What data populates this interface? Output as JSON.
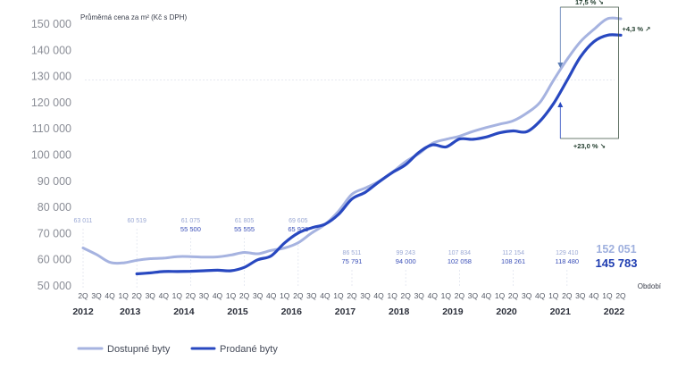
{
  "chart_data": {
    "type": "line",
    "ylabel": "Průměrná cena za m² (Kč s DPH)",
    "xlabel": "Období",
    "ylim": [
      50000,
      155000
    ],
    "grid": false,
    "legend_placement": "bottom-left",
    "y_ticks": [
      "50 000",
      "60 000",
      "70 000",
      "80 000",
      "90 000",
      "100 000",
      "110 000",
      "120 000",
      "130 000",
      "140 000",
      "150 000"
    ],
    "quarters": [
      "2Q",
      "3Q",
      "4Q",
      "1Q",
      "2Q",
      "3Q",
      "4Q",
      "1Q",
      "2Q",
      "3Q",
      "4Q",
      "1Q",
      "2Q",
      "3Q",
      "4Q",
      "1Q",
      "2Q",
      "3Q",
      "4Q",
      "1Q",
      "2Q",
      "3Q",
      "4Q",
      "1Q",
      "2Q",
      "3Q",
      "4Q",
      "1Q",
      "2Q",
      "3Q",
      "4Q",
      "1Q",
      "2Q",
      "3Q",
      "4Q",
      "1Q",
      "2Q",
      "3Q",
      "4Q",
      "1Q",
      "2Q"
    ],
    "years": [
      {
        "label": "2012",
        "index": 0
      },
      {
        "label": "2013",
        "index": 3.5
      },
      {
        "label": "2014",
        "index": 7.5
      },
      {
        "label": "2015",
        "index": 11.5
      },
      {
        "label": "2016",
        "index": 15.5
      },
      {
        "label": "2017",
        "index": 19.5
      },
      {
        "label": "2018",
        "index": 23.5
      },
      {
        "label": "2019",
        "index": 27.5
      },
      {
        "label": "2020",
        "index": 31.5
      },
      {
        "label": "2021",
        "index": 35.5
      },
      {
        "label": "2022",
        "index": 39.5
      }
    ],
    "series": [
      {
        "name": "Dostupné byty",
        "color": "#a6b3e0",
        "values": [
          64500,
          62000,
          59000,
          58800,
          59800,
          60400,
          60600,
          61200,
          61200,
          61000,
          61100,
          61800,
          62800,
          62300,
          63600,
          64500,
          66500,
          70200,
          73500,
          78500,
          85000,
          87400,
          89900,
          93400,
          97500,
          100600,
          104500,
          106000,
          107200,
          109000,
          110500,
          111800,
          113100,
          116000,
          120200,
          128600,
          136500,
          143300,
          148000,
          152051,
          152051
        ],
        "start_index": 0
      },
      {
        "name": "Prodané byty",
        "color": "#2848c0",
        "values": [
          54600,
          55000,
          55500,
          55500,
          55600,
          55800,
          56000,
          55800,
          57100,
          60000,
          61500,
          66500,
          70200,
          72200,
          73600,
          77300,
          83200,
          85800,
          89700,
          93300,
          96300,
          101100,
          103900,
          103100,
          106100,
          106000,
          106900,
          108500,
          109200,
          108900,
          113000,
          119700,
          128500,
          137500,
          143300,
          145783,
          145783
        ],
        "start_index": 4
      }
    ],
    "annotations_top": [
      {
        "index": 0,
        "text": "63 011"
      },
      {
        "index": 4,
        "text": "60 519"
      },
      {
        "index": 8,
        "text": "61 075"
      },
      {
        "index": 12,
        "text": "61 805"
      },
      {
        "index": 16,
        "text": "69 605"
      },
      {
        "index": 20,
        "text": "86 511"
      },
      {
        "index": 24,
        "text": "99 243"
      },
      {
        "index": 28,
        "text": "107 834"
      },
      {
        "index": 32,
        "text": "112 154"
      },
      {
        "index": 36,
        "text": "129 410"
      }
    ],
    "annotations_bottom": [
      {
        "index": 8,
        "text": "55 500"
      },
      {
        "index": 12,
        "text": "55 555"
      },
      {
        "index": 16,
        "text": "65 922"
      },
      {
        "index": 20,
        "text": "75 791"
      },
      {
        "index": 24,
        "text": "94 000"
      },
      {
        "index": 28,
        "text": "102 058"
      },
      {
        "index": 32,
        "text": "108 261"
      },
      {
        "index": 36,
        "text": "118 480"
      }
    ],
    "end_values": {
      "available": "152 051",
      "sold": "145 783"
    },
    "changes": {
      "top": "17,5 % ↘",
      "right": "+4,3 % ↗",
      "bottom": "+23,0 % ↘"
    }
  },
  "legend": [
    {
      "label": "Dostupné byty",
      "color": "#a6b3e0"
    },
    {
      "label": "Prodané byty",
      "color": "#2848c0"
    }
  ]
}
